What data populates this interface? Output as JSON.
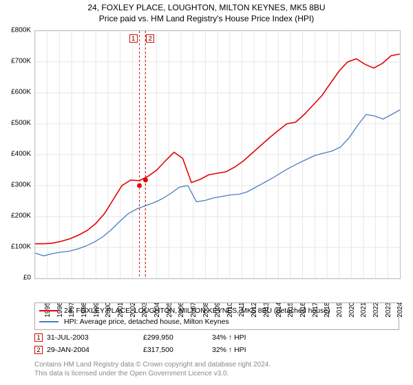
{
  "title": {
    "main": "24, FOXLEY PLACE, LOUGHTON, MILTON KEYNES, MK5 8BU",
    "sub": "Price paid vs. HM Land Registry's House Price Index (HPI)",
    "fontsize": 12
  },
  "chart": {
    "type": "line",
    "background_color": "#ffffff",
    "border_color": "#bfbfbf",
    "grid_color": "#e6e6e6",
    "yaxis": {
      "min": 0,
      "max": 800,
      "tick_step": 100,
      "tick_labels": [
        "£0",
        "£100K",
        "£200K",
        "£300K",
        "£400K",
        "£500K",
        "£600K",
        "£700K",
        "£800K"
      ],
      "label_fontsize": 10
    },
    "xaxis": {
      "min": 1995,
      "max": 2025,
      "ticks": [
        1995,
        1996,
        1997,
        1998,
        1999,
        2000,
        2001,
        2002,
        2003,
        2004,
        2005,
        2006,
        2007,
        2008,
        2009,
        2010,
        2011,
        2012,
        2013,
        2014,
        2015,
        2016,
        2017,
        2018,
        2019,
        2020,
        2021,
        2022,
        2023,
        2024
      ],
      "label_fontsize": 10,
      "label_rotation": -90
    },
    "series": [
      {
        "name": "24, FOXLEY PLACE, LOUGHTON, MILTON KEYNES, MK5 8BU (detached house)",
        "color": "#e30000",
        "line_width": 1.6,
        "data_y": [
          112,
          112,
          114,
          120,
          128,
          140,
          155,
          178,
          210,
          255,
          300,
          318,
          316,
          330,
          350,
          380,
          408,
          388,
          310,
          320,
          335,
          340,
          345,
          360,
          380,
          405,
          430,
          455,
          478,
          500,
          505,
          530,
          560,
          590,
          630,
          670,
          700,
          710,
          692,
          680,
          695,
          720,
          725
        ],
        "data_x_start": 1995,
        "data_x_step": 0.714
      },
      {
        "name": "HPI: Average price, detached house, Milton Keynes",
        "color": "#4a7ebf",
        "line_width": 1.3,
        "data_y": [
          82,
          73,
          80,
          85,
          88,
          95,
          105,
          118,
          135,
          158,
          185,
          210,
          225,
          235,
          245,
          258,
          275,
          295,
          300,
          248,
          252,
          260,
          265,
          270,
          272,
          280,
          295,
          310,
          325,
          342,
          358,
          372,
          385,
          398,
          405,
          412,
          425,
          455,
          495,
          530,
          525,
          515,
          530,
          545
        ],
        "data_x_start": 1995,
        "data_x_step": 0.698
      }
    ],
    "event_markers": [
      {
        "label": "1",
        "x": 2003.58,
        "y": 300,
        "border_color": "#e30000",
        "line_dash": "3,3"
      },
      {
        "label": "2",
        "x": 2004.08,
        "y": 318,
        "border_color": "#e30000",
        "line_dash": "3,3"
      }
    ],
    "sale_point_color": "#e30000",
    "sale_point_size": 4
  },
  "legend": {
    "items": [
      {
        "color": "#e30000",
        "label": "24, FOXLEY PLACE, LOUGHTON, MILTON KEYNES, MK5 8BU (detached house)"
      },
      {
        "color": "#4a7ebf",
        "label": "HPI: Average price, detached house, Milton Keynes"
      }
    ]
  },
  "events": [
    {
      "num": "1",
      "border_color": "#e30000",
      "date": "31-JUL-2003",
      "price": "£299,950",
      "desc": "34% ↑ HPI"
    },
    {
      "num": "2",
      "border_color": "#e30000",
      "date": "29-JAN-2004",
      "price": "£317,500",
      "desc": "32% ↑ HPI"
    }
  ],
  "footer": {
    "line1": "Contains HM Land Registry data © Crown copyright and database right 2024.",
    "line2": "This data is licensed under the Open Government Licence v3.0."
  }
}
